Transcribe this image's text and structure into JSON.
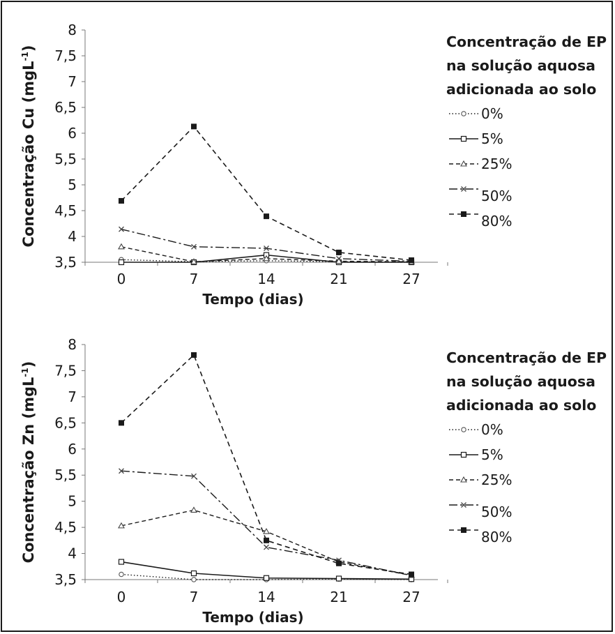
{
  "chart_data": [
    {
      "type": "line",
      "title": "",
      "xlabel": "Tempo (dias)",
      "ylabel": "Concentração Cu (mgL",
      "ylabel_sup": "-1",
      "ylabel_close": ")",
      "categories": [
        "0",
        "7",
        "14",
        "21",
        "27"
      ],
      "yticks": [
        "3,5",
        "4",
        "4,5",
        "5",
        "5,5",
        "6",
        "6,5",
        "7",
        "7,5",
        "8"
      ],
      "ylim": [
        3.5,
        8
      ],
      "grid": false,
      "legend_position": "right",
      "legend_title": [
        "Concentração de EP",
        "na solução aquosa",
        "adicionada ao solo"
      ],
      "series": [
        {
          "name": "0%",
          "values": [
            3.55,
            3.51,
            3.53,
            3.51,
            3.5
          ]
        },
        {
          "name": "5%",
          "values": [
            3.5,
            3.5,
            3.64,
            3.5,
            3.5
          ]
        },
        {
          "name": "25%",
          "values": [
            3.8,
            3.51,
            3.57,
            3.52,
            3.51
          ]
        },
        {
          "name": "50%",
          "values": [
            4.14,
            3.8,
            3.77,
            3.57,
            3.52
          ]
        },
        {
          "name": "80%",
          "values": [
            4.69,
            6.13,
            4.39,
            3.69,
            3.54
          ]
        }
      ]
    },
    {
      "type": "line",
      "title": "",
      "xlabel": "Tempo (dias)",
      "ylabel": "Concentração Zn (mgL",
      "ylabel_sup": "-1",
      "ylabel_close": ")",
      "categories": [
        "0",
        "7",
        "14",
        "21",
        "27"
      ],
      "yticks": [
        "3,5",
        "4",
        "4,5",
        "5",
        "5,5",
        "6",
        "6,5",
        "7",
        "7,5",
        "8"
      ],
      "ylim": [
        3.5,
        8
      ],
      "grid": false,
      "legend_position": "right",
      "legend_title": [
        "Concentração de EP",
        "na solução aquosa",
        "adicionada ao solo"
      ],
      "series": [
        {
          "name": "0%",
          "values": [
            3.6,
            3.5,
            3.5,
            3.51,
            3.5
          ]
        },
        {
          "name": "5%",
          "values": [
            3.84,
            3.62,
            3.53,
            3.52,
            3.51
          ]
        },
        {
          "name": "25%",
          "values": [
            4.53,
            4.83,
            4.42,
            3.84,
            3.58
          ]
        },
        {
          "name": "50%",
          "values": [
            5.58,
            5.48,
            4.12,
            3.87,
            3.58
          ]
        },
        {
          "name": "80%",
          "values": [
            6.5,
            7.8,
            4.25,
            3.81,
            3.6
          ]
        }
      ]
    }
  ]
}
